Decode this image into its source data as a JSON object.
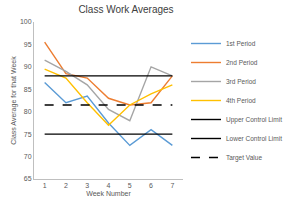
{
  "chart_data": {
    "type": "line",
    "title": "Class Work Averages",
    "x_label": "Week Number",
    "y_label": "Class Average for that Week",
    "x": [
      1,
      2,
      3,
      4,
      5,
      6,
      7
    ],
    "xlim": [
      0.5,
      7.5
    ],
    "xticks": [
      1,
      2,
      3,
      4,
      5,
      6,
      7
    ],
    "ylim": [
      65,
      100
    ],
    "yticks": [
      65,
      70,
      75,
      80,
      85,
      90,
      95,
      100
    ],
    "grid": false,
    "legend": "right",
    "series": [
      {
        "name": "1st Period",
        "color": "#5b9bd5",
        "line_style": "solid",
        "values": [
          86.5,
          82,
          83.5,
          77.5,
          72.5,
          76,
          72.5
        ]
      },
      {
        "name": "2nd Period",
        "color": "#ed7d31",
        "line_style": "solid",
        "values": [
          95.5,
          88.5,
          87.5,
          83,
          81.5,
          82,
          88
        ]
      },
      {
        "name": "3rd Period",
        "color": "#a5a5a5",
        "line_style": "solid",
        "values": [
          91.5,
          89,
          86,
          80.5,
          78,
          90,
          88
        ]
      },
      {
        "name": "4th Period",
        "color": "#ffc000",
        "line_style": "solid",
        "values": [
          89.5,
          87.5,
          82,
          77,
          81.5,
          84,
          86
        ]
      },
      {
        "name": "Upper Control Limit",
        "color": "#000000",
        "line_style": "solid",
        "values": [
          88,
          88,
          88,
          88,
          88,
          88,
          88
        ]
      },
      {
        "name": "Lower Control Limit",
        "color": "#000000",
        "line_style": "solid",
        "values": [
          75,
          75,
          75,
          75,
          75,
          75,
          75
        ]
      },
      {
        "name": "Target Value",
        "color": "#000000",
        "line_style": "dashed",
        "values": [
          81.5,
          81.5,
          81.5,
          81.5,
          81.5,
          81.5,
          81.5
        ]
      }
    ]
  }
}
